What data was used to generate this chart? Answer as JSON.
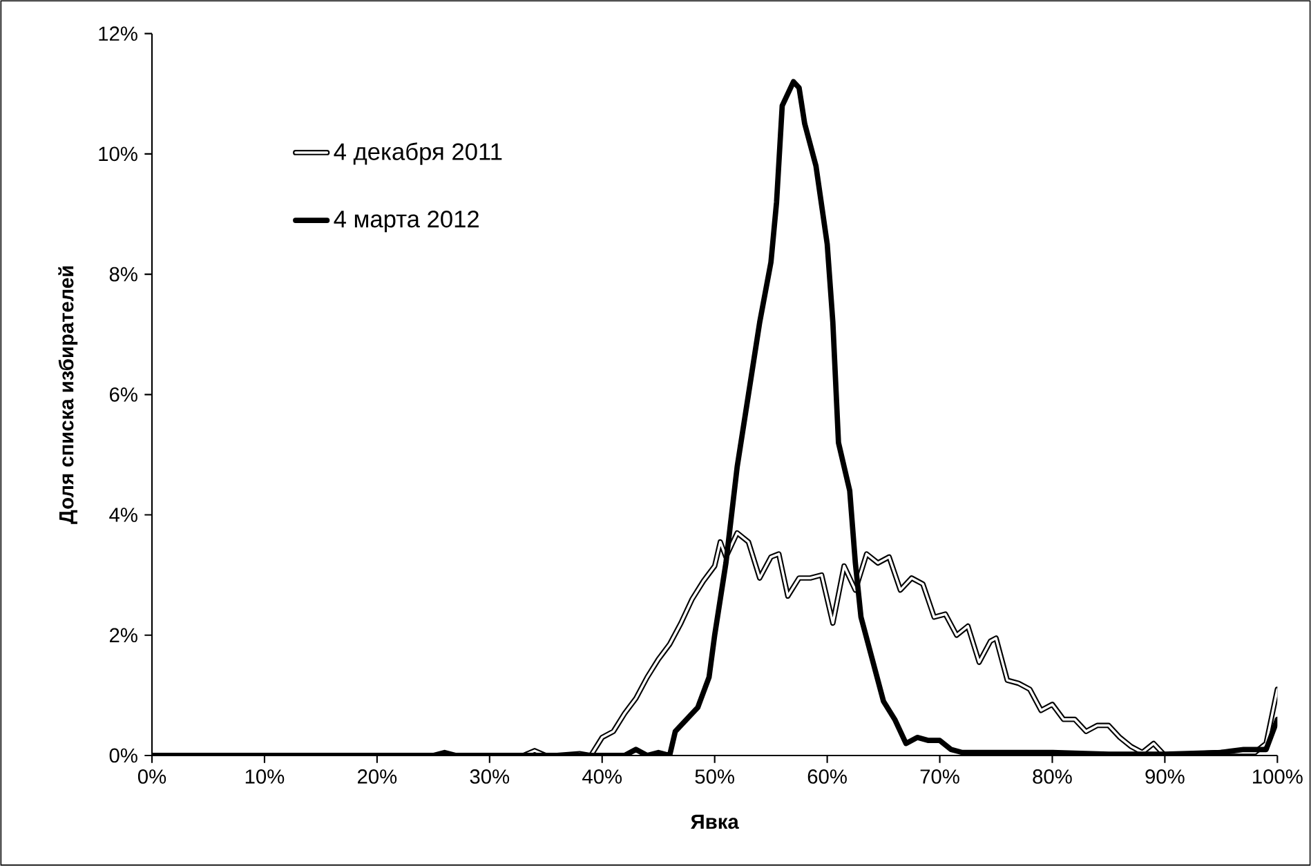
{
  "chart_data": {
    "type": "line",
    "xlabel": "Явка",
    "ylabel": "Доля списка избирателей",
    "xlim": [
      0,
      100
    ],
    "ylim": [
      0,
      12
    ],
    "xticks": [
      {
        "value": 0,
        "label": "0%"
      },
      {
        "value": 10,
        "label": "10%"
      },
      {
        "value": 20,
        "label": "20%"
      },
      {
        "value": 30,
        "label": "30%"
      },
      {
        "value": 40,
        "label": "40%"
      },
      {
        "value": 50,
        "label": "50%"
      },
      {
        "value": 60,
        "label": "60%"
      },
      {
        "value": 70,
        "label": "70%"
      },
      {
        "value": 80,
        "label": "80%"
      },
      {
        "value": 90,
        "label": "90%"
      },
      {
        "value": 100,
        "label": "100%"
      }
    ],
    "yticks": [
      {
        "value": 0,
        "label": "0%"
      },
      {
        "value": 2,
        "label": "2%"
      },
      {
        "value": 4,
        "label": "4%"
      },
      {
        "value": 6,
        "label": "6%"
      },
      {
        "value": 8,
        "label": "8%"
      },
      {
        "value": 10,
        "label": "10%"
      },
      {
        "value": 12,
        "label": "12%"
      }
    ],
    "grid": false,
    "legend": "top left",
    "marker": "none",
    "line_style": "solid",
    "series": [
      {
        "name": "4 декабря 2011",
        "color": "#000000",
        "x": [
          0,
          10,
          20,
          30,
          33,
          34,
          35,
          36,
          38,
          39,
          40,
          41,
          42,
          43,
          44,
          45,
          46,
          47,
          48,
          49,
          50,
          50.5,
          51,
          52,
          53,
          54,
          55,
          55.7,
          56.5,
          57.5,
          58.5,
          59.5,
          60.5,
          61.5,
          62.5,
          63.5,
          64.5,
          65.5,
          66.5,
          67.5,
          68.5,
          69.5,
          70.5,
          71.5,
          72.5,
          73.5,
          74.5,
          75,
          76,
          77,
          78,
          79,
          80,
          81,
          82,
          83,
          84,
          85,
          86,
          87,
          88,
          89,
          90,
          95,
          98,
          99,
          100
        ],
        "values": [
          0,
          0,
          0,
          0,
          0,
          0.08,
          0,
          0,
          0.03,
          0,
          0.3,
          0.4,
          0.7,
          0.95,
          1.3,
          1.6,
          1.85,
          2.2,
          2.6,
          2.9,
          3.15,
          3.55,
          3.3,
          3.7,
          3.55,
          2.95,
          3.3,
          3.35,
          2.65,
          2.95,
          2.95,
          3.0,
          2.2,
          3.15,
          2.75,
          3.35,
          3.2,
          3.3,
          2.75,
          2.95,
          2.85,
          2.3,
          2.35,
          2.0,
          2.15,
          1.55,
          1.9,
          1.95,
          1.25,
          1.2,
          1.1,
          0.75,
          0.85,
          0.6,
          0.6,
          0.4,
          0.5,
          0.5,
          0.3,
          0.15,
          0.05,
          0.2,
          0,
          0.05,
          0.05,
          0.2,
          1.1
        ]
      },
      {
        "name": "4 марта 2012",
        "color": "#000000",
        "x": [
          0,
          10,
          20,
          25,
          26,
          27,
          30,
          40,
          42,
          43,
          44,
          45,
          46,
          46.5,
          47.5,
          48.5,
          49.5,
          50,
          51,
          52,
          53,
          54,
          55,
          55.5,
          56,
          57,
          57.5,
          58,
          59,
          60,
          60.5,
          61,
          62,
          62.5,
          63,
          64,
          65,
          66,
          67,
          68,
          69,
          70,
          71,
          72,
          75,
          77,
          80,
          85,
          90,
          95,
          97,
          99,
          100
        ],
        "values": [
          0,
          0,
          0,
          0,
          0.05,
          0,
          0,
          0,
          0,
          0.1,
          0,
          0.05,
          0,
          0.4,
          0.6,
          0.8,
          1.3,
          2.0,
          3.2,
          4.8,
          6.0,
          7.2,
          8.2,
          9.2,
          10.8,
          11.2,
          11.1,
          10.5,
          9.8,
          8.5,
          7.2,
          5.2,
          4.4,
          3.2,
          2.3,
          1.6,
          0.9,
          0.6,
          0.2,
          0.3,
          0.25,
          0.25,
          0.1,
          0.05,
          0.05,
          0.05,
          0.05,
          0.02,
          0.02,
          0.05,
          0.1,
          0.1,
          0.6
        ]
      }
    ]
  }
}
